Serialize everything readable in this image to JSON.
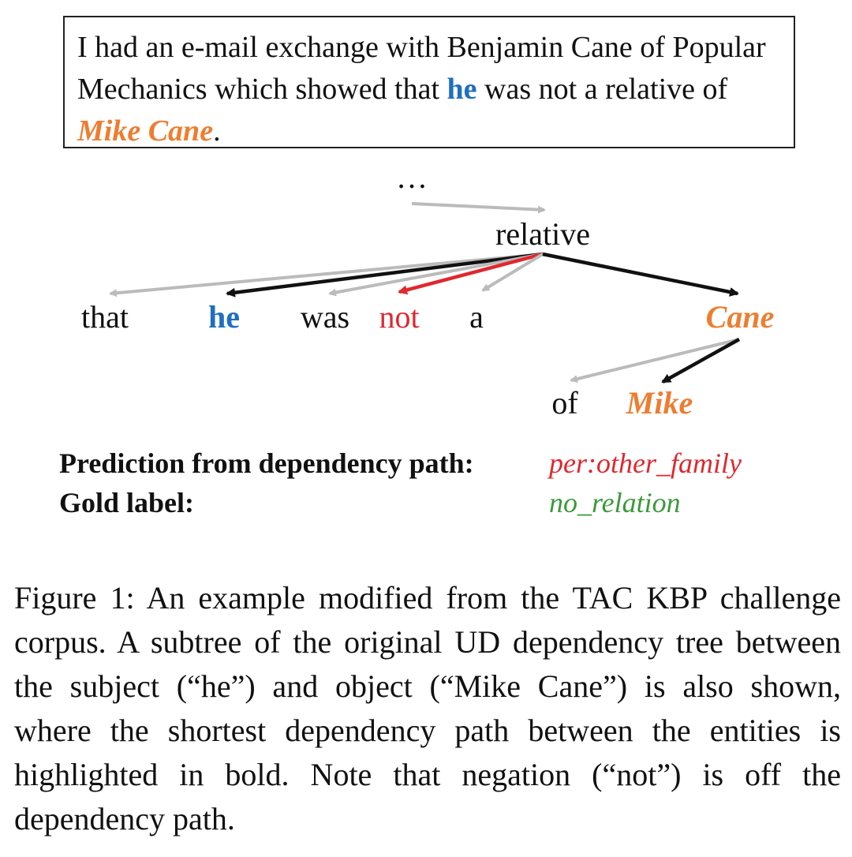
{
  "sentence": {
    "before_he": "I had an e-mail exchange with Benjamin Cane of Popular Mechanics which showed that ",
    "he": "he",
    "middle": " was not a relative of ",
    "mike_cane": "Mike Cane",
    "end": "."
  },
  "tree": {
    "ellipsis": "…",
    "root": "relative",
    "tokens": [
      "that",
      "he",
      "was",
      "not",
      "a",
      "Cane"
    ],
    "leaves": [
      "of",
      "Mike"
    ]
  },
  "labels": {
    "prediction_label": "Prediction from dependency path:",
    "prediction_value": "per:other_family",
    "gold_label": "Gold label:",
    "gold_value": "no_relation"
  },
  "caption": "Figure 1: An example modified from the TAC KBP challenge corpus. A subtree of the original UD dependency tree between the subject (“he”) and object (“Mike Cane”) is also shown, where the shortest dependency path between the entities is highlighted in bold. Note that negation (“not”) is off the dependency path.",
  "colors": {
    "subject": "#1f6fbf",
    "object": "#ee7d31",
    "negation": "#e0282e",
    "gold": "#3a9a3a",
    "path": "#111111",
    "non_path": "#bbbbbb"
  }
}
